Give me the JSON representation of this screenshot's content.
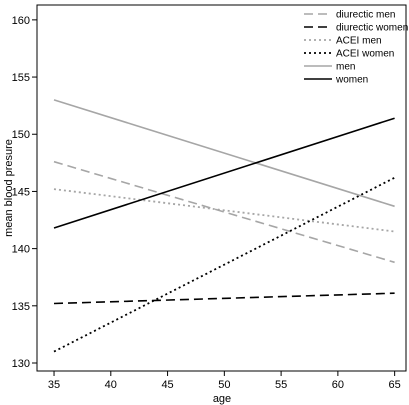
{
  "chart_data": {
    "type": "line",
    "title": "",
    "xlabel": "age",
    "ylabel": "mean blood presure",
    "xlim": [
      33.5,
      66
    ],
    "ylim": [
      129.3,
      161.3
    ],
    "xticks": [
      35,
      40,
      45,
      50,
      55,
      60,
      65
    ],
    "yticks": [
      130,
      135,
      140,
      145,
      150,
      155,
      160
    ],
    "grid": false,
    "legend_position": "top-right",
    "series": [
      {
        "name": "diurectic men",
        "x": [
          35,
          65
        ],
        "y": [
          147.6,
          138.8
        ],
        "color": "#a6a6a6",
        "style": "dashed"
      },
      {
        "name": "diurectic women",
        "x": [
          35,
          65
        ],
        "y": [
          135.2,
          136.1
        ],
        "color": "#000000",
        "style": "dashed"
      },
      {
        "name": "ACEI men",
        "x": [
          35,
          65
        ],
        "y": [
          145.2,
          141.5
        ],
        "color": "#a6a6a6",
        "style": "dotted"
      },
      {
        "name": "ACEI women",
        "x": [
          35,
          65
        ],
        "y": [
          131.0,
          146.2
        ],
        "color": "#000000",
        "style": "dotted"
      },
      {
        "name": "men",
        "x": [
          35,
          65
        ],
        "y": [
          153.0,
          143.7
        ],
        "color": "#a6a6a6",
        "style": "solid"
      },
      {
        "name": "women",
        "x": [
          35,
          65
        ],
        "y": [
          141.8,
          151.4
        ],
        "color": "#000000",
        "style": "solid"
      }
    ]
  }
}
